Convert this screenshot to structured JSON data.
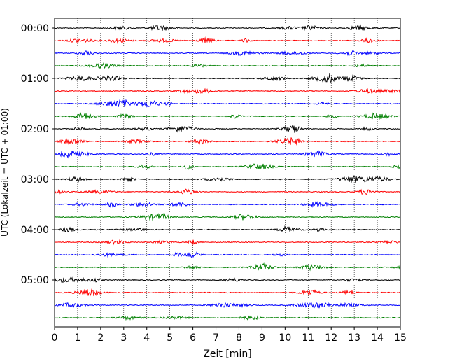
{
  "chart_data": {
    "type": "line",
    "title": "",
    "xlabel": "Zeit  [min]",
    "ylabel": "UTC (Lokalzeit = UTC + 01:00)",
    "xlim": [
      0,
      15
    ],
    "x_ticks": [
      "0",
      "1",
      "2",
      "3",
      "4",
      "5",
      "6",
      "7",
      "8",
      "9",
      "10",
      "11",
      "12",
      "13",
      "14",
      "15"
    ],
    "y_tick_labels": [
      "00:00",
      "01:00",
      "02:00",
      "03:00",
      "04:00",
      "05:00"
    ],
    "trace_interval_min": 15,
    "trace_count": 24,
    "trace_colors": [
      "#000000",
      "#ff0000",
      "#0000ff",
      "#008000"
    ],
    "grid_x": true,
    "grid_style": "dotted",
    "legend": "none"
  }
}
